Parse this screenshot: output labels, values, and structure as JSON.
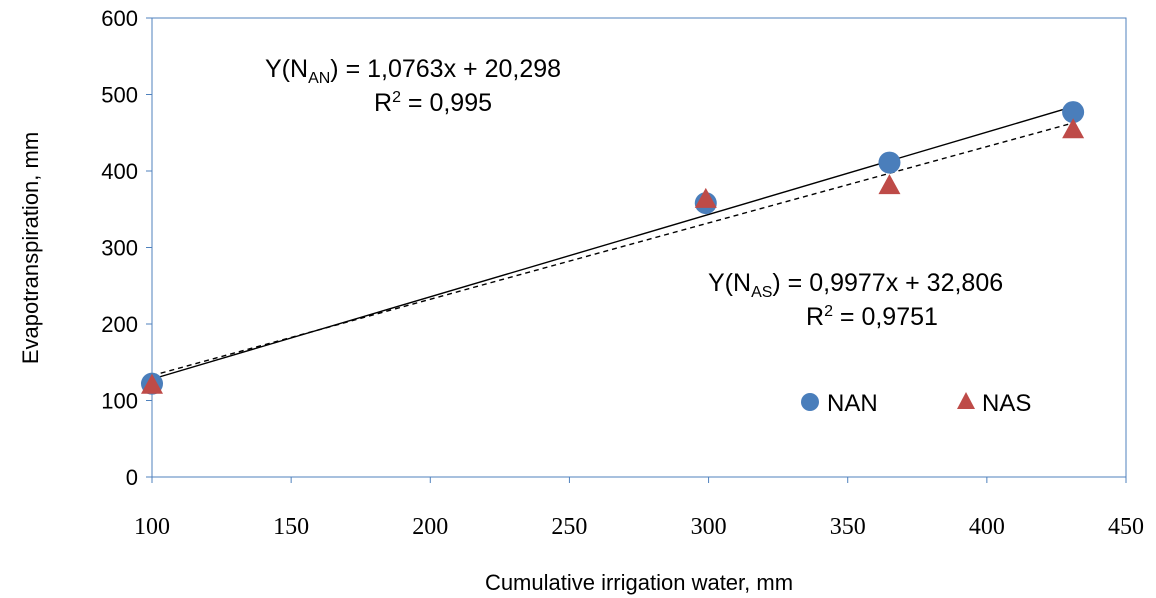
{
  "chart_data": {
    "type": "scatter",
    "xlabel": "Cumulative irrigation water, mm",
    "ylabel": "Evapotranspiration, mm",
    "xlim": [
      100,
      450
    ],
    "ylim": [
      0,
      600
    ],
    "x_ticks": [
      "100",
      "150",
      "200",
      "250",
      "300",
      "350",
      "400",
      "450"
    ],
    "y_ticks": [
      "0",
      "100",
      "200",
      "300",
      "400",
      "500",
      "600"
    ],
    "grid": false,
    "legend_position": "lower-right",
    "series": [
      {
        "name": "NAN",
        "color": "#4a7ebb",
        "marker": "circle",
        "x": [
          100,
          299,
          365,
          431
        ],
        "y": [
          122,
          358,
          411,
          477
        ],
        "trendline": {
          "slope": 1.0763,
          "intercept": 20.298,
          "style": "solid",
          "equation_parts": [
            "Y(N",
            "AN",
            ") = 1,0763x + 20,298"
          ],
          "r2_parts": [
            "R",
            "2",
            " = 0,995"
          ]
        }
      },
      {
        "name": "NAS",
        "color": "#be4b48",
        "marker": "triangle",
        "x": [
          100,
          299,
          365,
          431
        ],
        "y": [
          120,
          363,
          381,
          454
        ],
        "trendline": {
          "slope": 0.9977,
          "intercept": 32.806,
          "style": "dashed",
          "equation_parts": [
            "Y(N",
            "AS",
            ") = 0,9977x + 32,806"
          ],
          "r2_parts": [
            "R",
            "2",
            " = 0,9751"
          ]
        }
      }
    ]
  }
}
